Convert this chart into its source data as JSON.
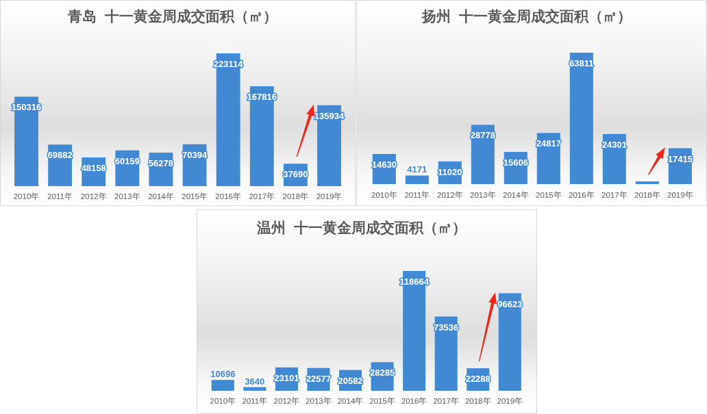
{
  "chart_data": [
    {
      "type": "bar",
      "title": "青岛  十一黄金周成交面积（㎡）",
      "categories": [
        "2010年",
        "2011年",
        "2012年",
        "2013年",
        "2014年",
        "2015年",
        "2016年",
        "2017年",
        "2018年",
        "2019年"
      ],
      "values": [
        150316,
        69882,
        48158,
        60159,
        56278,
        70394,
        223114,
        167816,
        37690,
        135934
      ],
      "color": "#4189d2",
      "data_labels": true
    },
    {
      "type": "bar",
      "title": "扬州  十一黄金周成交面积（㎡）",
      "categories": [
        "2010年",
        "2011年",
        "2012年",
        "2013年",
        "2014年",
        "2015年",
        "2016年",
        "2017年",
        "2018年",
        "2019年"
      ],
      "values": [
        14630,
        4171,
        11020,
        28778,
        15606,
        24817,
        63811,
        24301,
        1300,
        17415
      ],
      "color": "#4189d2",
      "value_labels": [
        "14630",
        "4171",
        "11020",
        "28778",
        "15606",
        "24817",
        "63811",
        "24301",
        null,
        "17415"
      ]
    },
    {
      "type": "bar",
      "title": "温州  十一黄金周成交面积（㎡）",
      "categories": [
        "2010年",
        "2011年",
        "2012年",
        "2013年",
        "2014年",
        "2015年",
        "2016年",
        "2017年",
        "2018年",
        "2019年"
      ],
      "values": [
        10696,
        3640,
        23101,
        22577,
        20582,
        28285,
        118664,
        73536,
        22288,
        96623
      ],
      "color": "#4189d2",
      "data_labels": true
    }
  ]
}
